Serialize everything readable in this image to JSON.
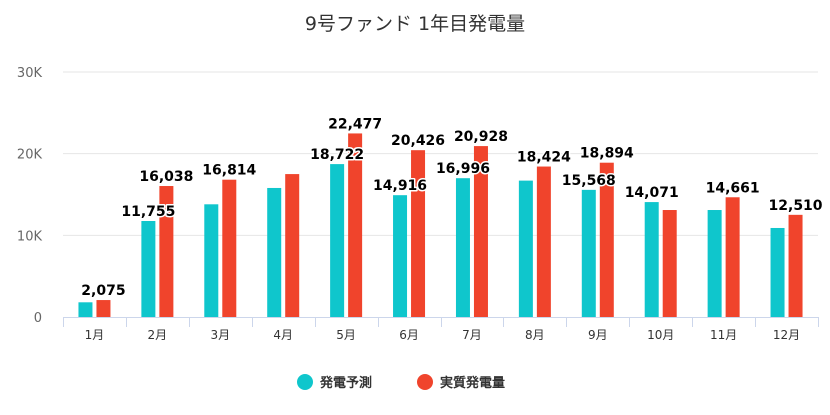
{
  "chart_data": {
    "type": "bar",
    "title": "9号ファンド 1年目発電量",
    "categories": [
      "1月",
      "2月",
      "3月",
      "4月",
      "5月",
      "6月",
      "7月",
      "8月",
      "9月",
      "10月",
      "11月",
      "12月"
    ],
    "series": [
      {
        "name": "発電予測",
        "color": "#0fc6cc",
        "values": [
          1800,
          11755,
          13800,
          15800,
          18722,
          14916,
          16996,
          16700,
          15568,
          14071,
          13100,
          10900
        ],
        "labels": [
          "",
          "11,755",
          "",
          "",
          "18,722",
          "14,916",
          "16,996",
          "",
          "15,568",
          "14,071",
          "",
          ""
        ]
      },
      {
        "name": "実質発電量",
        "color": "#f0442c",
        "values": [
          2075,
          16038,
          16814,
          17500,
          22477,
          20426,
          20928,
          18424,
          18894,
          13100,
          14661,
          12510
        ],
        "labels": [
          "2,075",
          "16,038",
          "16,814",
          "",
          "22,477",
          "20,426",
          "20,928",
          "18,424",
          "18,894",
          "",
          "14,661",
          "12,510"
        ]
      }
    ],
    "y_ticks": [
      "0",
      "10K",
      "20K",
      "30K"
    ],
    "ylim": [
      0,
      30000
    ],
    "grid": true,
    "legend_position": "bottom-center"
  }
}
